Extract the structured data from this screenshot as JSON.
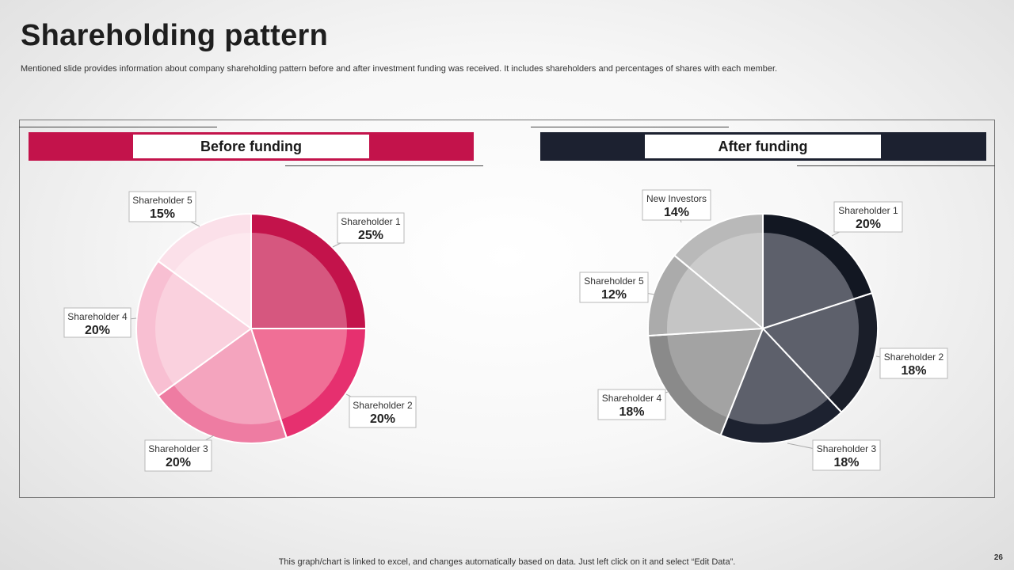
{
  "slide": {
    "title": "Shareholding pattern",
    "subtitle": "Mentioned slide provides information about company shareholding pattern before and after investment funding was received. It includes shareholders and percentages of shares with each member.",
    "footer": "This graph/chart is linked to excel,  and changes automatically based on data. Just left click on it and select “Edit Data”.",
    "page_number": "26"
  },
  "before": {
    "heading": "Before funding",
    "accent": "#c3134b"
  },
  "after": {
    "heading": "After funding",
    "accent": "#1c2130"
  },
  "chart_data": [
    {
      "type": "pie",
      "title": "Before funding",
      "categories": [
        "Shareholder 1",
        "Shareholder 2",
        "Shareholder 3",
        "Shareholder 4",
        "Shareholder 5"
      ],
      "values": [
        25,
        20,
        20,
        20,
        15
      ],
      "labels": [
        "25%",
        "20%",
        "20%",
        "20%",
        "15%"
      ],
      "colors": [
        "#c3134b",
        "#e6306f",
        "#ee7ca2",
        "#f8bfd2",
        "#fbe0e9"
      ],
      "inner_colors": [
        "#d6577f",
        "#f06f96",
        "#f4a4be",
        "#fad1de",
        "#fde9ef"
      ]
    },
    {
      "type": "pie",
      "title": "After funding",
      "categories": [
        "Shareholder 1",
        "Shareholder 2",
        "Shareholder 3",
        "Shareholder 4",
        "Shareholder 5",
        "New Investors"
      ],
      "values": [
        20,
        18,
        18,
        18,
        12,
        14
      ],
      "labels": [
        "20%",
        "18%",
        "18%",
        "18%",
        "12%",
        "14%"
      ],
      "colors": [
        "#121722",
        "#1a1e29",
        "#1d2230",
        "#8a8a8a",
        "#ababab",
        "#b9b9b9"
      ],
      "inner_colors": [
        "#5d606b",
        "#5d606b",
        "#5d606b",
        "#a3a3a3",
        "#c5c5c5",
        "#cbcbcb"
      ]
    }
  ]
}
